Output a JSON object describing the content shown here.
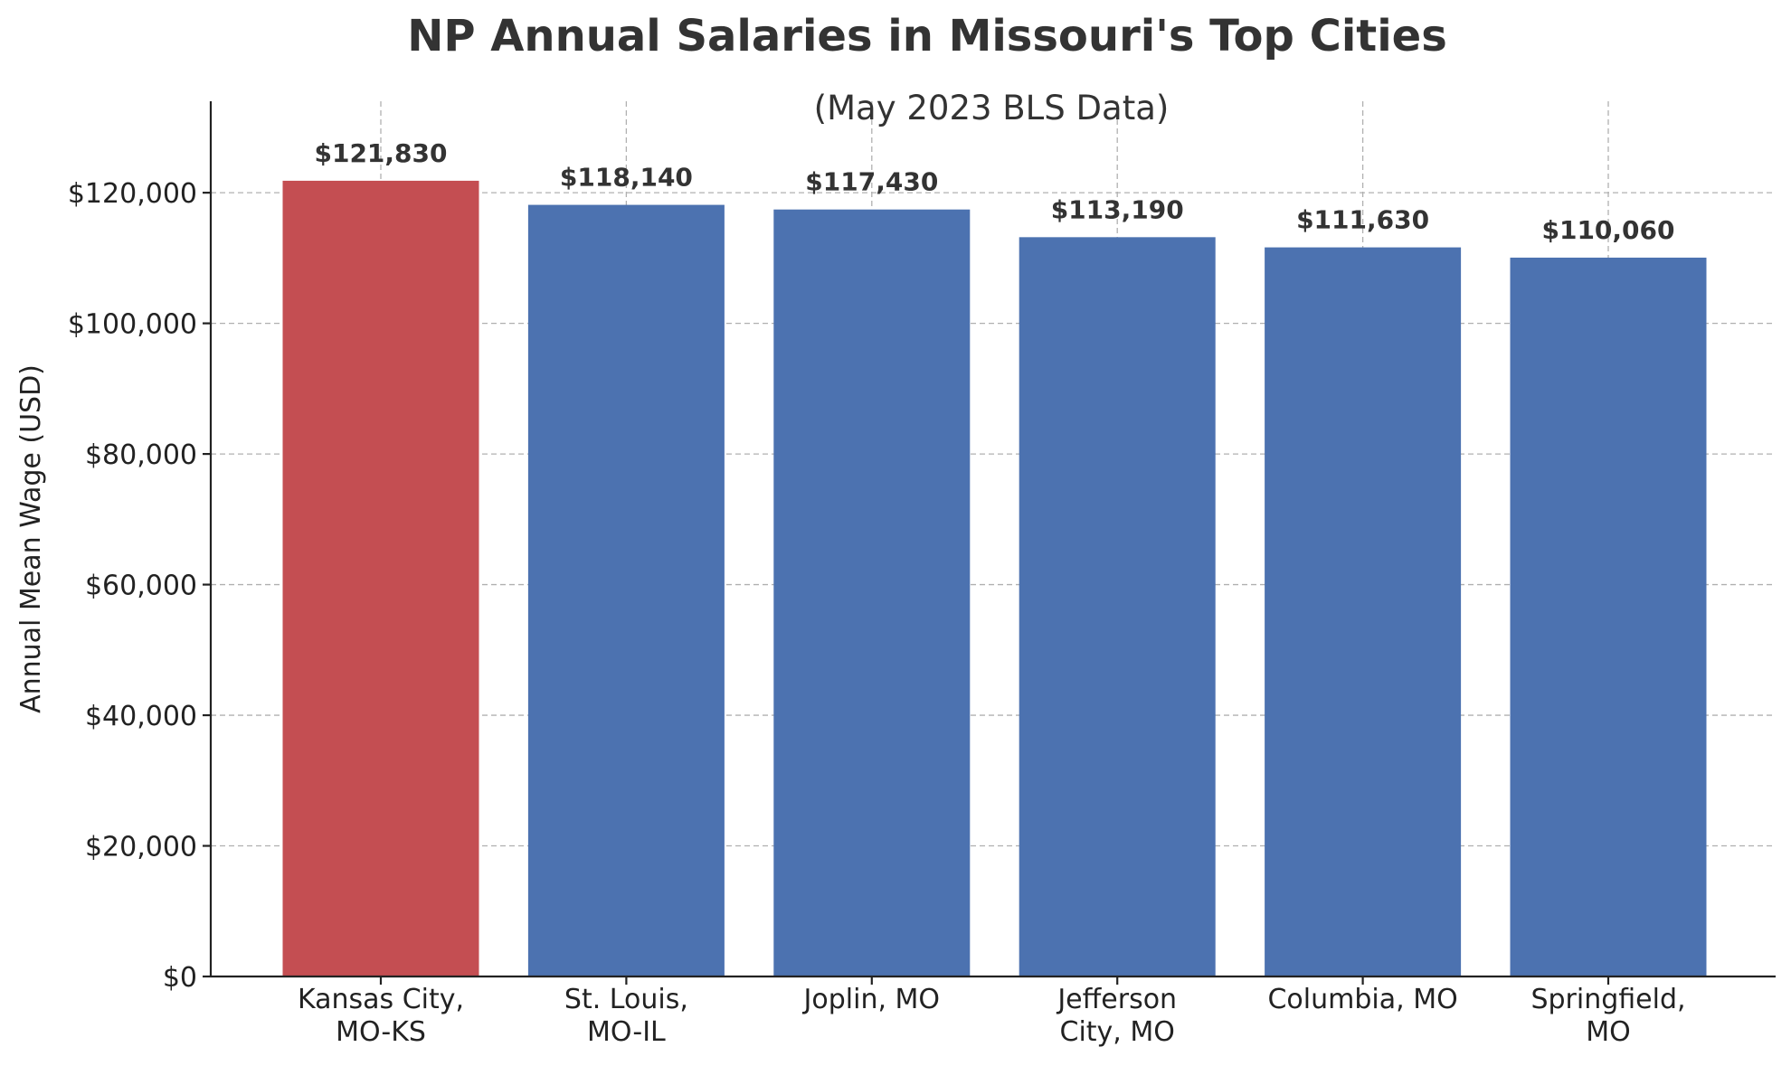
{
  "chart_data": {
    "type": "bar",
    "title": "NP Annual Salaries in Missouri's Top Cities",
    "subtitle": "(May 2023 BLS Data)",
    "ylabel": "Annual Mean Wage (USD)",
    "xlabel": "",
    "categories": [
      [
        "Kansas City,",
        "MO-KS"
      ],
      [
        "St. Louis,",
        "MO-IL"
      ],
      [
        "Joplin, MO"
      ],
      [
        "Jefferson",
        "City, MO"
      ],
      [
        "Columbia, MO"
      ],
      [
        "Springfield,",
        "MO"
      ]
    ],
    "values": [
      121830,
      118140,
      117430,
      113190,
      111630,
      110060
    ],
    "value_labels": [
      "$121,830",
      "$118,140",
      "$117,430",
      "$113,190",
      "$111,630",
      "$110,060"
    ],
    "bar_colors": [
      "#c44e52",
      "#4c72b0",
      "#4c72b0",
      "#4c72b0",
      "#4c72b0",
      "#4c72b0"
    ],
    "ylim": [
      0,
      134000
    ],
    "yticks": [
      0,
      20000,
      40000,
      60000,
      80000,
      100000,
      120000
    ],
    "ytick_labels": [
      "$0",
      "$20,000",
      "$40,000",
      "$60,000",
      "$80,000",
      "$100,000",
      "$120,000"
    ],
    "grid": true
  }
}
